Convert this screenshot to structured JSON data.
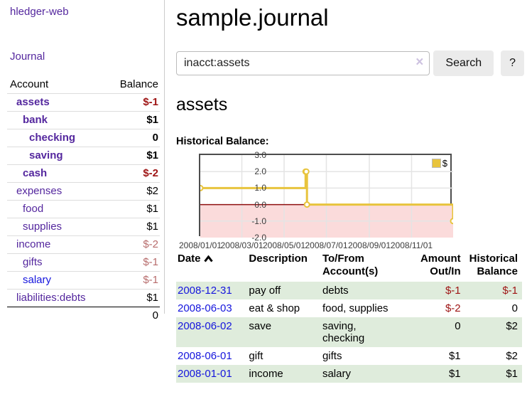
{
  "app": {
    "brand": "hledger-web",
    "nav_journal": "Journal"
  },
  "sidebar": {
    "headers": {
      "account": "Account",
      "balance": "Balance"
    },
    "accounts": [
      {
        "name": "assets",
        "depth": 1,
        "bold": true,
        "balance": "$-1",
        "balance_style": "neg-strong"
      },
      {
        "name": "bank",
        "depth": 2,
        "bold": true,
        "balance": "$1",
        "balance_style": "pos"
      },
      {
        "name": "checking",
        "depth": 3,
        "bold": true,
        "balance": "0",
        "balance_style": "pos"
      },
      {
        "name": "saving",
        "depth": 3,
        "bold": true,
        "balance": "$1",
        "balance_style": "pos"
      },
      {
        "name": "cash",
        "depth": 2,
        "bold": true,
        "balance": "$-2",
        "balance_style": "neg-strong"
      },
      {
        "name": "expenses",
        "depth": 1,
        "bold": false,
        "balance": "$2",
        "balance_style": "pos"
      },
      {
        "name": "food",
        "depth": 2,
        "bold": false,
        "balance": "$1",
        "balance_style": "pos"
      },
      {
        "name": "supplies",
        "depth": 2,
        "bold": false,
        "balance": "$1",
        "balance_style": "pos"
      },
      {
        "name": "income",
        "depth": 1,
        "bold": false,
        "balance": "$-2",
        "balance_style": "neg-muted"
      },
      {
        "name": "gifts",
        "depth": 2,
        "bold": false,
        "balance": "$-1",
        "balance_style": "neg-muted"
      },
      {
        "name": "salary",
        "depth": 2,
        "bold": false,
        "balance": "$-1",
        "balance_style": "neg-muted",
        "link_color": "blue"
      },
      {
        "name": "liabilities:debts",
        "depth": 1,
        "bold": false,
        "balance": "$1",
        "balance_style": "pos"
      }
    ],
    "total": "0"
  },
  "header": {
    "title": "sample.journal"
  },
  "search": {
    "value": "inacct:assets",
    "clear_icon": "×",
    "button": "Search",
    "help_button": "?"
  },
  "account_page": {
    "heading": "assets",
    "chart_label": "Historical Balance:"
  },
  "chart_data": {
    "type": "line",
    "step": true,
    "title": "Historical Balance:",
    "series": [
      {
        "name": "$",
        "points": [
          {
            "date": "2008-01-01",
            "day": 0,
            "value": 1
          },
          {
            "date": "2008-06-01",
            "day": 152,
            "value": 2
          },
          {
            "date": "2008-06-02",
            "day": 153,
            "value": 2
          },
          {
            "date": "2008-06-03",
            "day": 154,
            "value": 0
          },
          {
            "date": "2008-12-31",
            "day": 365,
            "value": -1
          }
        ]
      }
    ],
    "x_range_days": [
      0,
      365
    ],
    "x_ticks": [
      {
        "label": "2008/01/01",
        "day": 0
      },
      {
        "label": "2008/03/01",
        "day": 60
      },
      {
        "label": "2008/05/01",
        "day": 121
      },
      {
        "label": "2008/07/01",
        "day": 182
      },
      {
        "label": "2008/09/01",
        "day": 244
      },
      {
        "label": "2008/11/01",
        "day": 305
      }
    ],
    "y_ticks": [
      3.0,
      2.0,
      1.0,
      0.0,
      -1.0,
      -2.0
    ],
    "ylim": [
      -2,
      3
    ],
    "legend": {
      "label": "$",
      "position": "top-right"
    },
    "colors": {
      "line": "#e8c43d",
      "marker_fill": "#ffffff",
      "negative_region": "#fbdbdb",
      "zero_line": "#8f1010",
      "gridline": "#e4e4e4",
      "border": "#4d4d4d"
    }
  },
  "register": {
    "headers": {
      "date": "Date",
      "description": "Description",
      "account": "To/From Account(s)",
      "amount": "Amount Out/In",
      "balance": "Historical Balance"
    },
    "rows": [
      {
        "date": "2008-12-31",
        "description": "pay off",
        "account": "debts",
        "amount": "$-1",
        "amount_neg": true,
        "balance": "$-1",
        "balance_neg": true
      },
      {
        "date": "2008-06-03",
        "description": "eat & shop",
        "account": "food, supplies",
        "amount": "$-2",
        "amount_neg": true,
        "balance": "0",
        "balance_neg": false
      },
      {
        "date": "2008-06-02",
        "description": "save",
        "account": "saving, checking",
        "amount": "0",
        "amount_neg": false,
        "balance": "$2",
        "balance_neg": false
      },
      {
        "date": "2008-06-01",
        "description": "gift",
        "account": "gifts",
        "amount": "$1",
        "amount_neg": false,
        "balance": "$2",
        "balance_neg": false
      },
      {
        "date": "2008-01-01",
        "description": "income",
        "account": "salary",
        "amount": "$1",
        "amount_neg": false,
        "balance": "$1",
        "balance_neg": false
      }
    ]
  },
  "colors": {
    "link_purple": "#54279e",
    "link_blue": "#1515dd",
    "negative_strong": "#9e1414",
    "negative_muted": "#b76c6c",
    "row_stripe_green": "#dfecdc",
    "button_gray": "#ebebeb"
  }
}
